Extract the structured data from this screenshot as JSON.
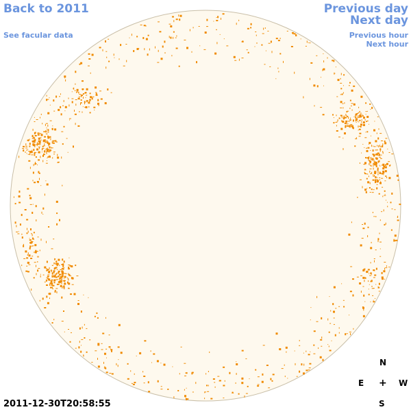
{
  "nav": {
    "back": "Back to 2011",
    "facular": "See facular data",
    "previous_day": "Previous day",
    "next_day": "Next day",
    "previous_hour": "Previous hour",
    "next_hour": "Next hour"
  },
  "compass": {
    "n": "N",
    "s": "S",
    "e": "E",
    "w": "W",
    "center": "+"
  },
  "timestamp": "2011-12-30T20:58:55",
  "colors": {
    "link": "#6b95de",
    "disk_fill": "#fef9ee",
    "disk_stroke": "#c9bfa8",
    "facula": "#f08a00"
  }
}
